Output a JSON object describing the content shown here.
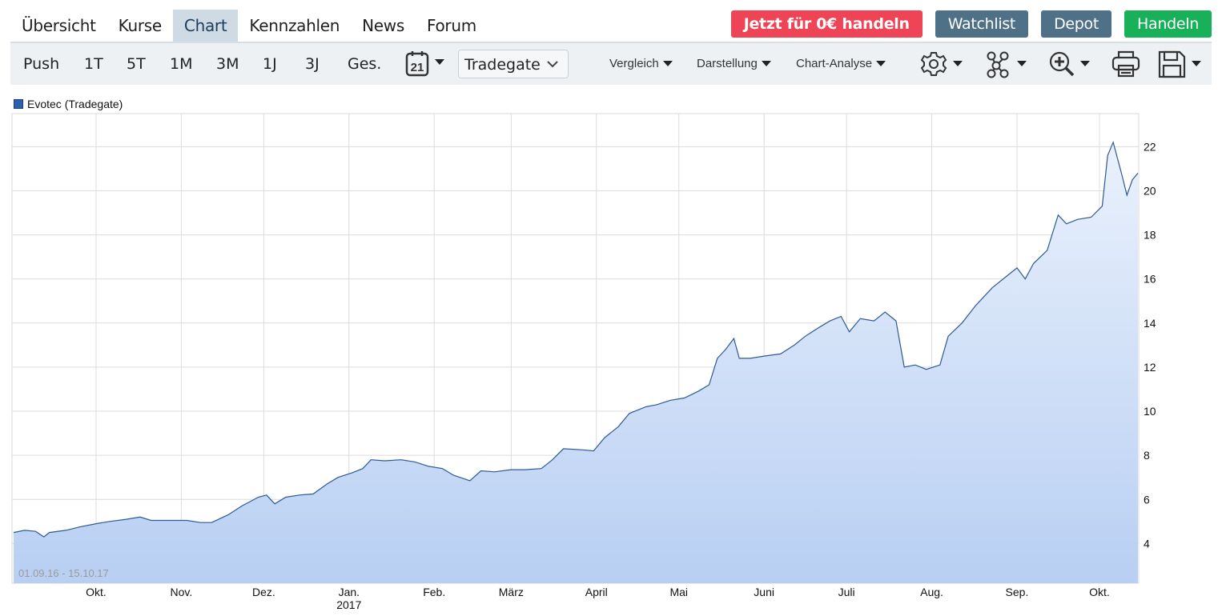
{
  "nav": {
    "tabs": [
      {
        "label": "Übersicht",
        "active": false
      },
      {
        "label": "Kurse",
        "active": false
      },
      {
        "label": "Chart",
        "active": true
      },
      {
        "label": "Kennzahlen",
        "active": false
      },
      {
        "label": "News",
        "active": false
      },
      {
        "label": "Forum",
        "active": false
      }
    ],
    "buttons": {
      "trade_free": "Jetzt für 0€ handeln",
      "watchlist": "Watchlist",
      "depot": "Depot",
      "handeln": "Handeln"
    },
    "colors": {
      "trade_free": "#ef4455",
      "watchlist": "#4f7187",
      "depot": "#4f7187",
      "handeln": "#18b15a"
    }
  },
  "toolbar": {
    "periods": [
      "Push",
      "1T",
      "5T",
      "1M",
      "3M",
      "1J",
      "3J",
      "Ges."
    ],
    "calendar_day": "21",
    "exchange": {
      "selected": "Tradegate"
    },
    "menus": {
      "vergleich": "Vergleich",
      "darstellung": "Darstellung",
      "chart_analyse": "Chart-Analyse"
    },
    "icons": [
      "calendar-icon",
      "gear-icon",
      "indicator-nodes-icon",
      "zoom-in-icon",
      "print-icon",
      "save-icon"
    ]
  },
  "chart_data": {
    "type": "area",
    "title": "",
    "legend": [
      "Evotec (Tradegate)"
    ],
    "legend_placement": "top-left",
    "date_range": "01.09.16 - 15.10.17",
    "xlabel": "",
    "ylabel": "",
    "x_ticks": [
      "Okt.",
      "Nov.",
      "Dez.",
      "Jan.",
      "Feb.",
      "März",
      "April",
      "Mai",
      "Juni",
      "Juli",
      "Aug.",
      "Sep.",
      "Okt."
    ],
    "x_year_label": {
      "under": "Jan.",
      "text": "2017"
    },
    "y_ticks": [
      4,
      6,
      8,
      10,
      12,
      14,
      16,
      18,
      20,
      22
    ],
    "ylim": [
      2.2,
      23.5
    ],
    "xlim": [
      "2016-09-01",
      "2017-10-15"
    ],
    "grid": true,
    "line_color": "#2d5a95",
    "fill_color_top": "#eaf1fc",
    "fill_color_bottom": "#b8cff3",
    "series": [
      {
        "name": "Evotec (Tradegate)",
        "points": [
          [
            "2016-09-01",
            4.5
          ],
          [
            "2016-09-05",
            4.6
          ],
          [
            "2016-09-09",
            4.55
          ],
          [
            "2016-09-12",
            4.3
          ],
          [
            "2016-09-14",
            4.5
          ],
          [
            "2016-09-20",
            4.6
          ],
          [
            "2016-09-25",
            4.75
          ],
          [
            "2016-10-01",
            4.9
          ],
          [
            "2016-10-06",
            5.0
          ],
          [
            "2016-10-12",
            5.1
          ],
          [
            "2016-10-17",
            5.2
          ],
          [
            "2016-10-21",
            5.05
          ],
          [
            "2016-10-27",
            5.05
          ],
          [
            "2016-11-03",
            5.05
          ],
          [
            "2016-11-08",
            4.95
          ],
          [
            "2016-11-12",
            4.95
          ],
          [
            "2016-11-18",
            5.3
          ],
          [
            "2016-11-23",
            5.7
          ],
          [
            "2016-11-29",
            6.1
          ],
          [
            "2016-12-02",
            6.2
          ],
          [
            "2016-12-05",
            5.8
          ],
          [
            "2016-12-09",
            6.1
          ],
          [
            "2016-12-14",
            6.2
          ],
          [
            "2016-12-19",
            6.25
          ],
          [
            "2016-12-24",
            6.7
          ],
          [
            "2016-12-28",
            7.0
          ],
          [
            "2017-01-02",
            7.2
          ],
          [
            "2017-01-06",
            7.4
          ],
          [
            "2017-01-09",
            7.8
          ],
          [
            "2017-01-14",
            7.75
          ],
          [
            "2017-01-20",
            7.8
          ],
          [
            "2017-01-25",
            7.7
          ],
          [
            "2017-01-30",
            7.5
          ],
          [
            "2017-02-04",
            7.4
          ],
          [
            "2017-02-08",
            7.1
          ],
          [
            "2017-02-14",
            6.85
          ],
          [
            "2017-02-18",
            7.3
          ],
          [
            "2017-02-23",
            7.25
          ],
          [
            "2017-03-01",
            7.35
          ],
          [
            "2017-03-06",
            7.35
          ],
          [
            "2017-03-12",
            7.4
          ],
          [
            "2017-03-16",
            7.8
          ],
          [
            "2017-03-20",
            8.3
          ],
          [
            "2017-03-27",
            8.25
          ],
          [
            "2017-03-31",
            8.2
          ],
          [
            "2017-04-04",
            8.8
          ],
          [
            "2017-04-09",
            9.3
          ],
          [
            "2017-04-13",
            9.9
          ],
          [
            "2017-04-19",
            10.2
          ],
          [
            "2017-04-23",
            10.3
          ],
          [
            "2017-04-28",
            10.5
          ],
          [
            "2017-05-03",
            10.6
          ],
          [
            "2017-05-08",
            10.9
          ],
          [
            "2017-05-12",
            11.2
          ],
          [
            "2017-05-15",
            12.4
          ],
          [
            "2017-05-18",
            12.8
          ],
          [
            "2017-05-21",
            13.3
          ],
          [
            "2017-05-23",
            12.4
          ],
          [
            "2017-05-27",
            12.4
          ],
          [
            "2017-06-01",
            12.5
          ],
          [
            "2017-06-07",
            12.6
          ],
          [
            "2017-06-12",
            13.0
          ],
          [
            "2017-06-16",
            13.4
          ],
          [
            "2017-06-21",
            13.8
          ],
          [
            "2017-06-25",
            14.1
          ],
          [
            "2017-06-29",
            14.3
          ],
          [
            "2017-07-02",
            13.6
          ],
          [
            "2017-07-06",
            14.2
          ],
          [
            "2017-07-11",
            14.1
          ],
          [
            "2017-07-15",
            14.5
          ],
          [
            "2017-07-19",
            14.1
          ],
          [
            "2017-07-22",
            12.0
          ],
          [
            "2017-07-26",
            12.1
          ],
          [
            "2017-07-30",
            11.9
          ],
          [
            "2017-08-04",
            12.1
          ],
          [
            "2017-08-07",
            13.4
          ],
          [
            "2017-08-12",
            14.0
          ],
          [
            "2017-08-17",
            14.8
          ],
          [
            "2017-08-23",
            15.6
          ],
          [
            "2017-08-28",
            16.1
          ],
          [
            "2017-09-01",
            16.5
          ],
          [
            "2017-09-04",
            16.0
          ],
          [
            "2017-09-07",
            16.7
          ],
          [
            "2017-09-12",
            17.3
          ],
          [
            "2017-09-16",
            18.9
          ],
          [
            "2017-09-19",
            18.5
          ],
          [
            "2017-09-23",
            18.7
          ],
          [
            "2017-09-28",
            18.8
          ],
          [
            "2017-10-02",
            19.3
          ],
          [
            "2017-10-04",
            21.6
          ],
          [
            "2017-10-06",
            22.2
          ],
          [
            "2017-10-09",
            20.8
          ],
          [
            "2017-10-11",
            19.8
          ],
          [
            "2017-10-13",
            20.5
          ],
          [
            "2017-10-15",
            20.8
          ]
        ]
      }
    ]
  }
}
